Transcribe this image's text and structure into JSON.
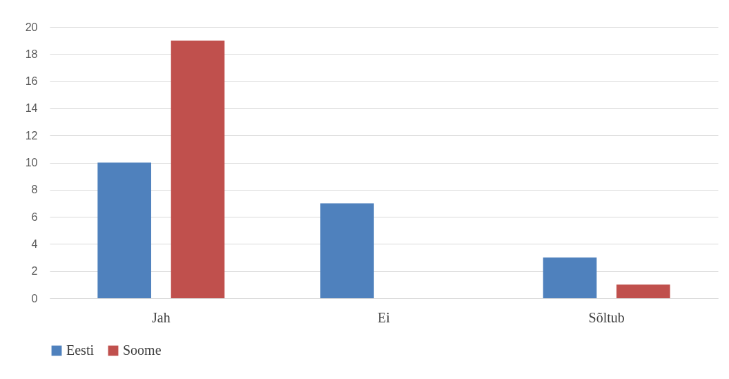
{
  "chart_data": {
    "type": "bar",
    "categories": [
      "Jah",
      "Ei",
      "Sõltub"
    ],
    "series": [
      {
        "name": "Eesti",
        "color": "#4f81bd",
        "values": [
          10,
          7,
          3
        ]
      },
      {
        "name": "Soome",
        "color": "#c0504d",
        "values": [
          19,
          0,
          1
        ]
      }
    ],
    "ylim": [
      0,
      20
    ],
    "yticks": [
      0,
      2,
      4,
      6,
      8,
      10,
      12,
      14,
      16,
      18,
      20
    ],
    "grid": "y",
    "legend": "bottom"
  }
}
